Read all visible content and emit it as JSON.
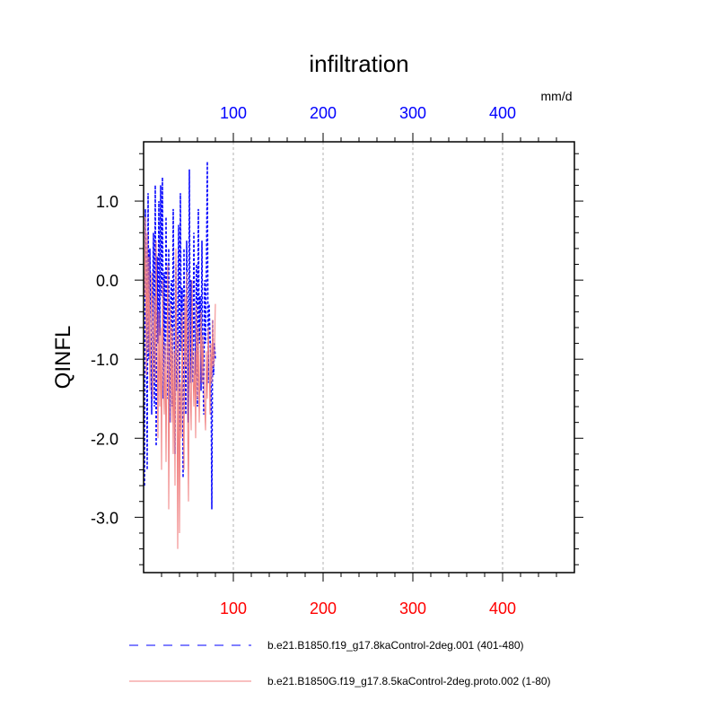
{
  "chart_data": {
    "type": "line",
    "title": "infiltration",
    "units": "mm/d",
    "ylabel": "QINFL",
    "xlabel": "",
    "xlim": [
      0,
      480
    ],
    "ylim": [
      -3.7,
      1.75
    ],
    "x_ticks": [
      100,
      200,
      300,
      400
    ],
    "x_tick_labels": [
      "100",
      "200",
      "300",
      "400"
    ],
    "y_ticks": [
      1.0,
      0.0,
      -1.0,
      -2.0,
      -3.0
    ],
    "y_tick_labels": [
      "1.0",
      "0.0",
      "-1.0",
      "-2.0",
      "-3.0"
    ],
    "grid": "vertical dashed at major x ticks",
    "top_axis_color": "#0000ff",
    "bottom_axis_color": "#ff0000",
    "series": [
      {
        "name": "b.e21.B1850.f19_g17.8kaControl-2deg.001 (401-480)",
        "color": "#0000ff",
        "style": "dashed",
        "x": [
          1,
          2,
          3,
          4,
          5,
          6,
          7,
          8,
          9,
          10,
          11,
          12,
          13,
          14,
          15,
          16,
          17,
          18,
          19,
          20,
          21,
          22,
          23,
          24,
          25,
          26,
          27,
          28,
          29,
          30,
          31,
          32,
          33,
          34,
          35,
          36,
          37,
          38,
          39,
          40,
          41,
          42,
          43,
          44,
          45,
          46,
          47,
          48,
          49,
          50,
          51,
          52,
          53,
          54,
          55,
          56,
          57,
          58,
          59,
          60,
          61,
          62,
          63,
          64,
          65,
          66,
          67,
          68,
          69,
          70,
          71,
          72,
          73,
          74,
          75,
          76,
          77,
          78,
          79,
          80
        ],
        "values": [
          -2.6,
          0.9,
          -0.2,
          -2.4,
          1.1,
          -1.0,
          0.4,
          -0.5,
          -1.7,
          -0.3,
          0.6,
          -1.6,
          1.2,
          -2.1,
          0.3,
          -0.8,
          1.0,
          -0.7,
          1.2,
          -0.2,
          1.3,
          -1.5,
          0.1,
          -1.1,
          0.8,
          -0.6,
          -1.5,
          0.4,
          -1.8,
          -0.3,
          0.0,
          -1.6,
          0.9,
          -0.5,
          -2.2,
          0.2,
          -1.4,
          -0.6,
          0.7,
          -1.9,
          1.1,
          -0.9,
          -0.1,
          -2.5,
          0.4,
          -1.0,
          -1.7,
          0.5,
          -0.4,
          -1.8,
          1.4,
          -1.3,
          0.0,
          -0.9,
          -1.3,
          0.6,
          -0.7,
          -1.2,
          0.2,
          -1.6,
          0.9,
          -0.8,
          -0.2,
          -1.4,
          0.5,
          -1.1,
          -1.7,
          0.0,
          -0.8,
          0.2,
          1.5,
          -1.3,
          -0.3,
          -0.7,
          -1.0,
          -2.9,
          -0.5,
          -1.2,
          -0.8,
          -1.0
        ]
      },
      {
        "name": "b.e21.B1850G.f19_g17.8.5kaControl-2deg.proto.002 (1-80)",
        "color": "#f08080",
        "style": "solid",
        "x": [
          1,
          2,
          3,
          4,
          5,
          6,
          7,
          8,
          9,
          10,
          11,
          12,
          13,
          14,
          15,
          16,
          17,
          18,
          19,
          20,
          21,
          22,
          23,
          24,
          25,
          26,
          27,
          28,
          29,
          30,
          31,
          32,
          33,
          34,
          35,
          36,
          37,
          38,
          39,
          40,
          41,
          42,
          43,
          44,
          45,
          46,
          47,
          48,
          49,
          50,
          51,
          52,
          53,
          54,
          55,
          56,
          57,
          58,
          59,
          60,
          61,
          62,
          63,
          64,
          65,
          66,
          67,
          68,
          69,
          70,
          71,
          72,
          73,
          74,
          75,
          76,
          77,
          78,
          79,
          80
        ],
        "values": [
          -0.2,
          0.8,
          -1.2,
          0.6,
          -0.9,
          0.3,
          -1.4,
          -0.5,
          0.1,
          -1.5,
          -0.8,
          -0.2,
          -1.3,
          0.5,
          -0.7,
          -2.0,
          -0.4,
          -1.6,
          -0.6,
          -2.4,
          0.0,
          -1.2,
          -1.7,
          -0.8,
          -2.3,
          -1.0,
          0.2,
          -2.9,
          -1.1,
          -0.3,
          -1.8,
          -0.6,
          -2.2,
          -0.9,
          -2.6,
          0.4,
          -1.0,
          -3.4,
          -0.7,
          -3.2,
          -1.3,
          -2.0,
          -0.4,
          -1.6,
          -2.4,
          -0.2,
          -1.1,
          0.1,
          -1.7,
          -2.8,
          -0.5,
          -1.4,
          -1.9,
          0.0,
          -1.2,
          -1.6,
          -0.9,
          -2.0,
          -0.3,
          -1.5,
          -0.6,
          -1.8,
          -1.1,
          -0.4,
          -1.3,
          -0.7,
          -1.2,
          -1.6,
          -1.9,
          -0.9,
          -1.5,
          -0.6,
          -1.0,
          -1.7,
          -0.8,
          -1.3,
          -0.5,
          -1.1,
          -0.9,
          -0.3
        ]
      }
    ],
    "legend": [
      {
        "label": "b.e21.B1850.f19_g17.8kaControl-2deg.001 (401-480)",
        "color": "#0000ff",
        "style": "dashed"
      },
      {
        "label": "b.e21.B1850G.f19_g17.8.5kaControl-2deg.proto.002 (1-80)",
        "color": "#f08080",
        "style": "solid"
      }
    ]
  }
}
